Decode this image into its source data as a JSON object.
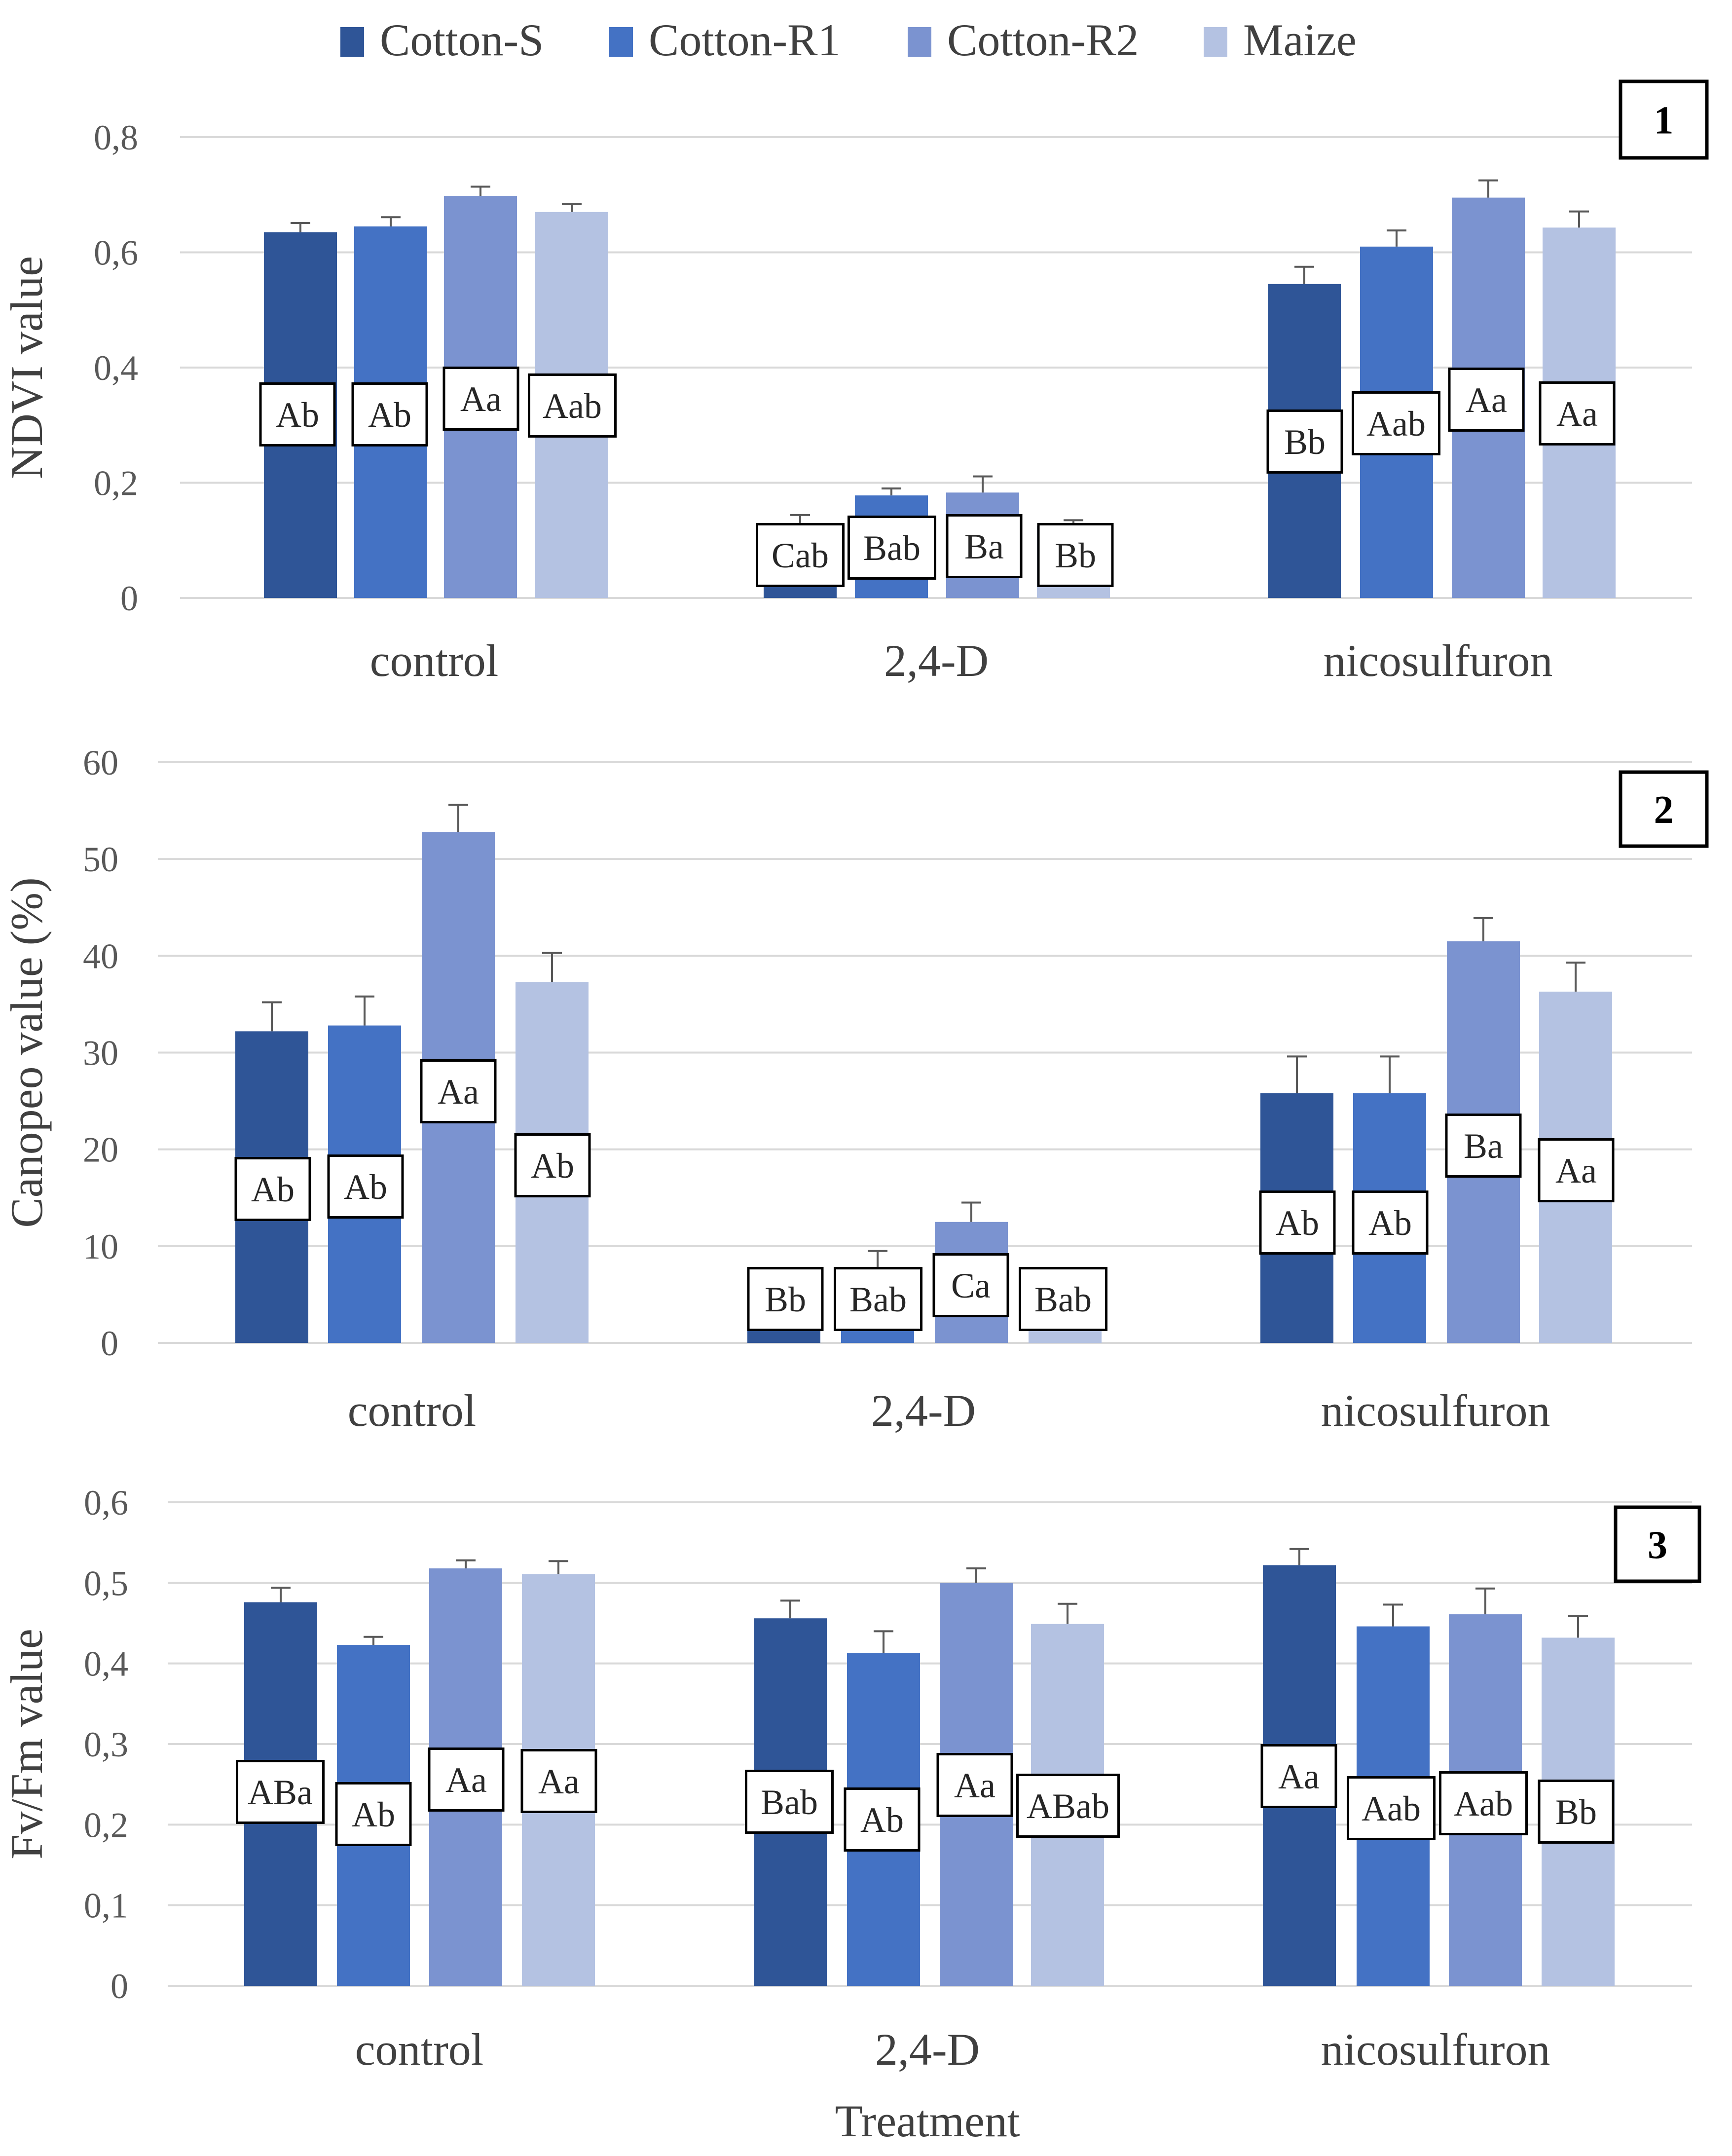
{
  "chart_data": [
    {
      "type": "bar",
      "panel": "1",
      "ylabel": "NDVI value",
      "xlabel": "",
      "ylim": [
        0,
        0.8
      ],
      "yticks": [
        "0",
        "0,2",
        "0,4",
        "0,6",
        "0,8"
      ],
      "categories": [
        "control",
        "2,4-D",
        "nicosulfuron"
      ],
      "series": [
        {
          "name": "Cotton-S",
          "values": [
            0.635,
            0.12,
            0.545
          ],
          "errors": [
            0.016,
            0.024,
            0.03
          ],
          "labels": [
            "Ab",
            "Cab",
            "Bb"
          ]
        },
        {
          "name": "Cotton-R1",
          "values": [
            0.645,
            0.178,
            0.61
          ],
          "errors": [
            0.016,
            0.012,
            0.028
          ],
          "labels": [
            "Ab",
            "Bab",
            "Aab"
          ]
        },
        {
          "name": "Cotton-R2",
          "values": [
            0.698,
            0.183,
            0.695
          ],
          "errors": [
            0.016,
            0.028,
            0.03
          ],
          "labels": [
            "Aa",
            "Ba",
            "Aa"
          ]
        },
        {
          "name": "Maize",
          "values": [
            0.67,
            0.125,
            0.643
          ],
          "errors": [
            0.014,
            0.01,
            0.028
          ],
          "labels": [
            "Aab",
            "Bb",
            "Aa"
          ]
        }
      ],
      "grid": true,
      "legend": "top"
    },
    {
      "type": "bar",
      "panel": "2",
      "ylabel": "Canopeo value (%)",
      "xlabel": "",
      "ylim": [
        0,
        60
      ],
      "yticks": [
        "0",
        "10",
        "20",
        "30",
        "40",
        "50",
        "60"
      ],
      "categories": [
        "control",
        "2,4-D",
        "nicosulfuron"
      ],
      "series": [
        {
          "name": "Cotton-S",
          "values": [
            32.2,
            3.0,
            25.8
          ],
          "errors": [
            3.0,
            0.5,
            3.8
          ],
          "labels": [
            "Ab",
            "Bb",
            "Ab"
          ]
        },
        {
          "name": "Cotton-R1",
          "values": [
            32.8,
            6.5,
            25.8
          ],
          "errors": [
            3.0,
            3.0,
            3.8
          ],
          "labels": [
            "Ab",
            "Bab",
            "Ab"
          ]
        },
        {
          "name": "Cotton-R2",
          "values": [
            52.8,
            12.5,
            41.5
          ],
          "errors": [
            2.8,
            2.0,
            2.4
          ],
          "labels": [
            "Aa",
            "Ca",
            "Ba"
          ]
        },
        {
          "name": "Maize",
          "values": [
            37.3,
            2.5,
            36.3
          ],
          "errors": [
            3.0,
            0.5,
            3.0
          ],
          "labels": [
            "Ab",
            "Bab",
            "Aa"
          ]
        }
      ],
      "grid": true
    },
    {
      "type": "bar",
      "panel": "3",
      "ylabel": "Fv/Fm value",
      "xlabel": "Treatment",
      "ylim": [
        0,
        0.6
      ],
      "yticks": [
        "0",
        "0,1",
        "0,2",
        "0,3",
        "0,4",
        "0,5",
        "0,6"
      ],
      "categories": [
        "control",
        "2,4-D",
        "nicosulfuron"
      ],
      "series": [
        {
          "name": "Cotton-S",
          "values": [
            0.476,
            0.456,
            0.522
          ],
          "errors": [
            0.018,
            0.022,
            0.02
          ],
          "labels": [
            "ABa",
            "Bab",
            "Aa"
          ]
        },
        {
          "name": "Cotton-R1",
          "values": [
            0.423,
            0.413,
            0.446
          ],
          "errors": [
            0.01,
            0.027,
            0.027
          ],
          "labels": [
            "Ab",
            "Ab",
            "Aab"
          ]
        },
        {
          "name": "Cotton-R2",
          "values": [
            0.518,
            0.5,
            0.461
          ],
          "errors": [
            0.01,
            0.018,
            0.032
          ],
          "labels": [
            "Aa",
            "Aa",
            "Aab"
          ]
        },
        {
          "name": "Maize",
          "values": [
            0.511,
            0.449,
            0.432
          ],
          "errors": [
            0.016,
            0.025,
            0.027
          ],
          "labels": [
            "Aa",
            "ABab",
            "Bb"
          ]
        }
      ],
      "grid": true
    }
  ],
  "legend": [
    "Cotton-S",
    "Cotton-R1",
    "Cotton-R2",
    "Maize"
  ],
  "colors": [
    "#2f5597",
    "#4472c4",
    "#7b93d0",
    "#b4c2e2"
  ]
}
